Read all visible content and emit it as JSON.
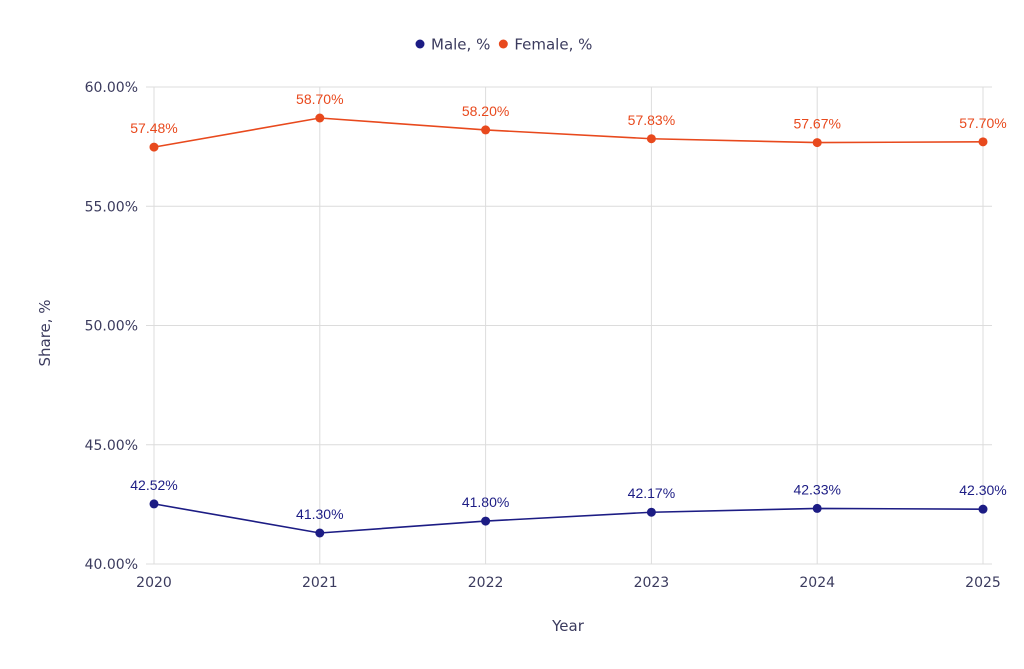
{
  "chart_data": {
    "type": "line",
    "title": "",
    "xlabel": "Year",
    "ylabel": "Share, %",
    "x": [
      "2020",
      "2021",
      "2022",
      "2023",
      "2024",
      "2025"
    ],
    "ylim": [
      40,
      60
    ],
    "yticks": [
      40,
      45,
      50,
      55,
      60
    ],
    "ytick_labels": [
      "40.00%",
      "45.00%",
      "50.00%",
      "55.00%",
      "60.00%"
    ],
    "grid": true,
    "legend_position": "top-center",
    "series": [
      {
        "name": "Male, %",
        "color": "#1c1c84",
        "values": [
          42.52,
          41.3,
          41.8,
          42.17,
          42.33,
          42.3
        ],
        "labels": [
          "42.52%",
          "41.30%",
          "41.80%",
          "42.17%",
          "42.33%",
          "42.30%"
        ]
      },
      {
        "name": "Female, %",
        "color": "#e8491d",
        "values": [
          57.48,
          58.7,
          58.2,
          57.83,
          57.67,
          57.7
        ],
        "labels": [
          "57.48%",
          "58.70%",
          "58.20%",
          "57.83%",
          "57.67%",
          "57.70%"
        ]
      }
    ]
  }
}
